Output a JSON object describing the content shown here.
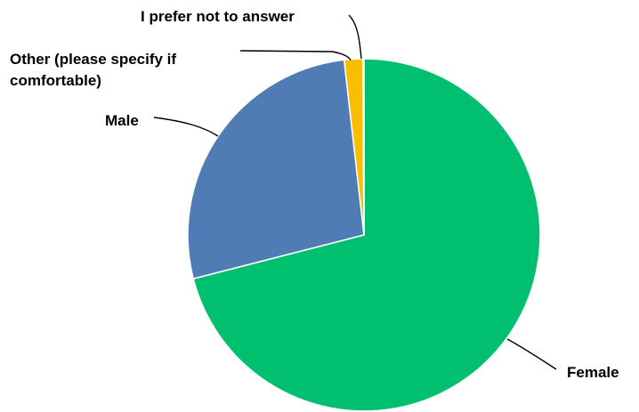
{
  "chart_data": {
    "type": "pie",
    "slices": [
      {
        "label": "Female",
        "value": 71.0,
        "color": "#00BF6F"
      },
      {
        "label": "Male",
        "value": 27.2,
        "color": "#507CB6"
      },
      {
        "label": "Other (please specify if comfortable)",
        "value": 1.7,
        "color": "#F9BE00"
      },
      {
        "label": "I prefer not to answer",
        "value": 0.1,
        "color": "#6BC8CD"
      }
    ],
    "label_lines": {
      "female": "Female",
      "male": "Male",
      "other_1": "Other (please specify if",
      "other_2": "comfortable)",
      "prefer": "I prefer not to answer"
    }
  }
}
